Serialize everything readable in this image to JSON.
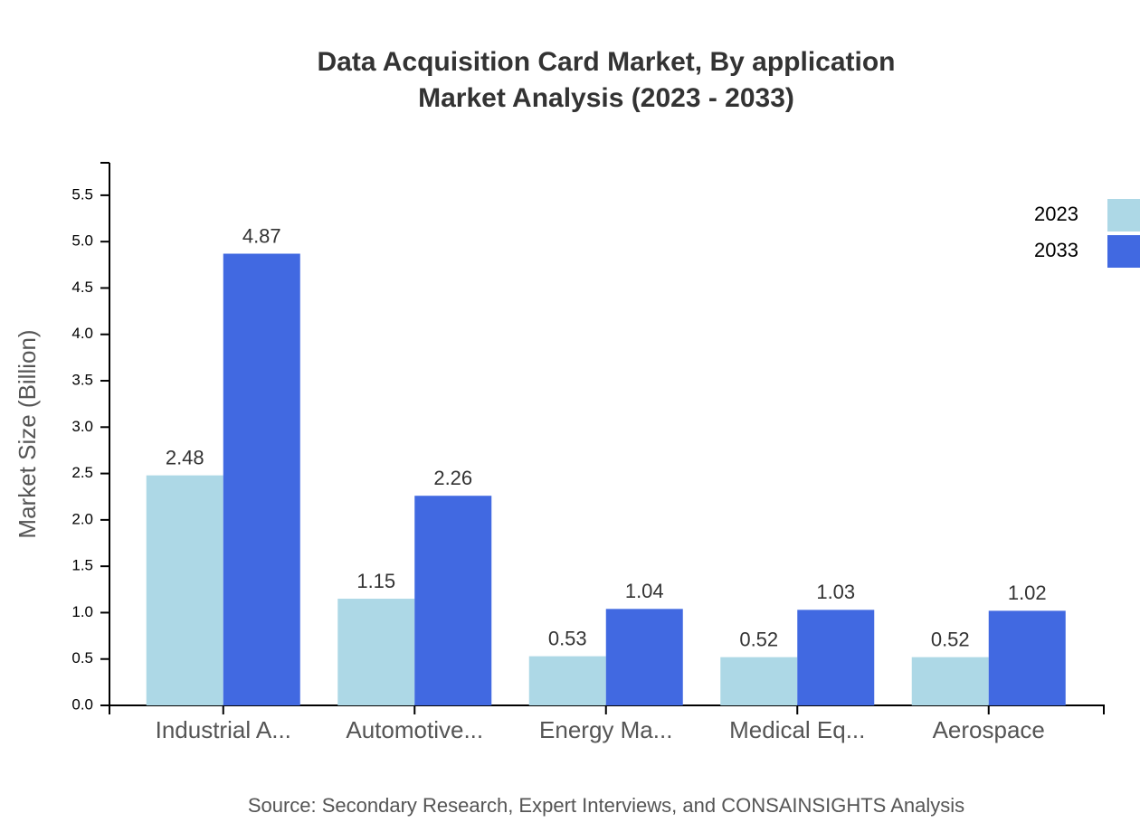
{
  "chart_data": {
    "type": "bar",
    "title": "Data Acquisition Card Market, By application",
    "subtitle": "Market Analysis (2023 - 2033)",
    "y_label": "Market Size (Billion)",
    "source": "Source: Secondary Research, Expert Interviews, and CONSAINSIGHTS Analysis",
    "categories": [
      "Industrial A...",
      "Automotive...",
      "Energy Ma...",
      "Medical Eq...",
      "Aerospace"
    ],
    "series": [
      {
        "name": "2023",
        "color": "#add8e6",
        "values": [
          2.48,
          1.15,
          0.53,
          0.52,
          0.52
        ]
      },
      {
        "name": "2033",
        "color": "#4169e1",
        "values": [
          4.87,
          2.26,
          1.04,
          1.03,
          1.02
        ]
      }
    ],
    "ylim": [
      0,
      5.85
    ],
    "yticks": [
      {
        "value": 0,
        "label": "0.0"
      },
      {
        "value": 0.5,
        "label": "0.5"
      },
      {
        "value": 1,
        "label": "1.0"
      },
      {
        "value": 1.5,
        "label": "1.5"
      },
      {
        "value": 2,
        "label": "2.0"
      },
      {
        "value": 2.5,
        "label": "2.5"
      },
      {
        "value": 3,
        "label": "3.0"
      },
      {
        "value": 3.5,
        "label": "3.5"
      },
      {
        "value": 4,
        "label": "4.0"
      },
      {
        "value": 4.5,
        "label": "4.5"
      },
      {
        "value": 5,
        "label": "5.0"
      },
      {
        "value": 5.5,
        "label": "5.5"
      }
    ],
    "legend": "top-right"
  }
}
